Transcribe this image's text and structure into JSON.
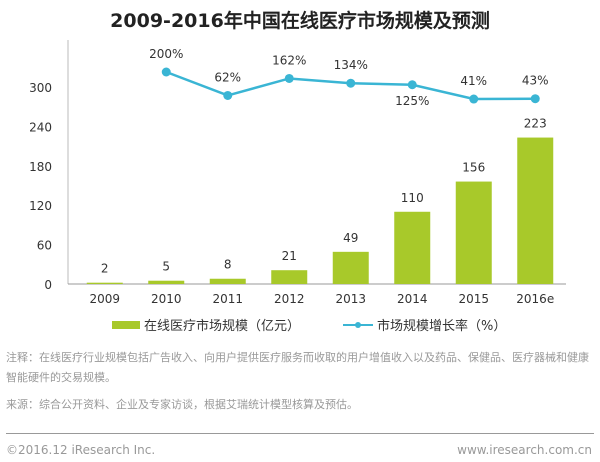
{
  "chart_data": {
    "title": "2009-2016年中国在线医疗市场规模及预测",
    "type": "bar+line",
    "categories": [
      "2009",
      "2010",
      "2011",
      "2012",
      "2013",
      "2014",
      "2015",
      "2016e"
    ],
    "yticks": [
      "0",
      "60",
      "120",
      "180",
      "240",
      "300"
    ],
    "ylim": [
      0,
      300
    ],
    "grid": false,
    "legend_position": "bottom",
    "series": [
      {
        "name": "在线医疗市场规模（亿元）",
        "type": "bar",
        "color": "#a8c92a",
        "values": [
          2,
          5,
          8,
          21,
          49,
          110,
          156,
          223
        ]
      },
      {
        "name": "市场规模增长率（%）",
        "type": "line",
        "color": "#3ab5d4",
        "values": [
          null,
          200,
          62,
          162,
          134,
          125,
          41,
          43
        ],
        "labels": [
          "",
          "200%",
          "62%",
          "162%",
          "134%",
          "125%",
          "41%",
          "43%"
        ]
      }
    ]
  },
  "notes": {
    "note": "注释：在线医疗行业规模包括广告收入、向用户提供医疗服务而收取的用户增值收入以及药品、保健品、医疗器械和健康智能硬件的交易规模。",
    "source": "来源：综合公开资料、企业及专家访谈，根据艾瑞统计模型核算及预估。"
  },
  "footer": {
    "copyright": "©2016.12 iResearch Inc.",
    "url": "www.iresearch.com.cn"
  }
}
